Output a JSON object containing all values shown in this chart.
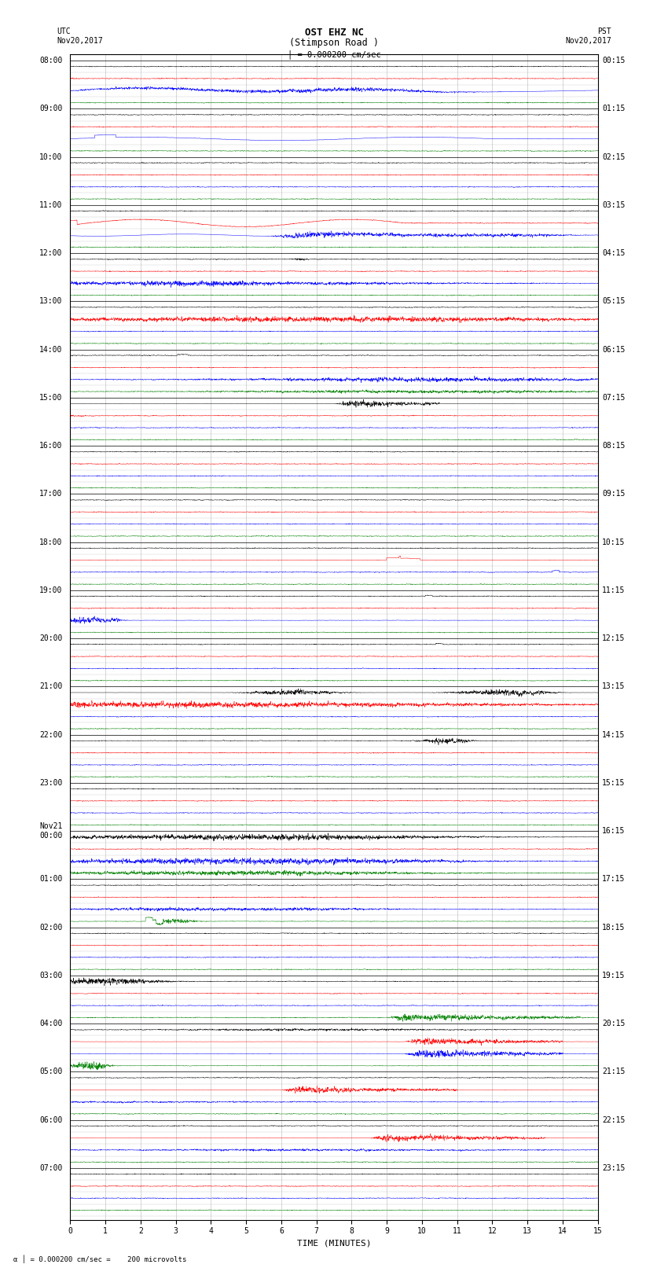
{
  "title_line1": "OST EHZ NC",
  "title_line2": "(Stimpson Road )",
  "scale_label": "= 0.000200 cm/sec",
  "bottom_label": "= 0.000200 cm/sec =    200 microvolts",
  "xlabel": "TIME (MINUTES)",
  "left_header": "UTC\nNov20,2017",
  "right_header": "PST\nNov20,2017",
  "left_times": [
    "08:00",
    "09:00",
    "10:00",
    "11:00",
    "12:00",
    "13:00",
    "14:00",
    "15:00",
    "16:00",
    "17:00",
    "18:00",
    "19:00",
    "20:00",
    "21:00",
    "22:00",
    "23:00",
    "Nov21\n00:00",
    "01:00",
    "02:00",
    "03:00",
    "04:00",
    "05:00",
    "06:00",
    "07:00"
  ],
  "right_times": [
    "00:15",
    "01:15",
    "02:15",
    "03:15",
    "04:15",
    "05:15",
    "06:15",
    "07:15",
    "08:15",
    "09:15",
    "10:15",
    "11:15",
    "12:15",
    "13:15",
    "14:15",
    "15:15",
    "16:15",
    "17:15",
    "18:15",
    "19:15",
    "20:15",
    "21:15",
    "22:15",
    "23:15"
  ],
  "n_hours": 24,
  "sub_traces": 4,
  "sub_colors": [
    "black",
    "red",
    "blue",
    "green"
  ],
  "bg_color": "#ffffff",
  "grid_color": "#888888",
  "fig_width": 8.5,
  "fig_height": 16.13,
  "dpi": 100,
  "xlim": [
    0,
    15
  ],
  "xticks": [
    0,
    1,
    2,
    3,
    4,
    5,
    6,
    7,
    8,
    9,
    10,
    11,
    12,
    13,
    14,
    15
  ],
  "title_fontsize": 9,
  "label_fontsize": 8,
  "tick_fontsize": 7
}
